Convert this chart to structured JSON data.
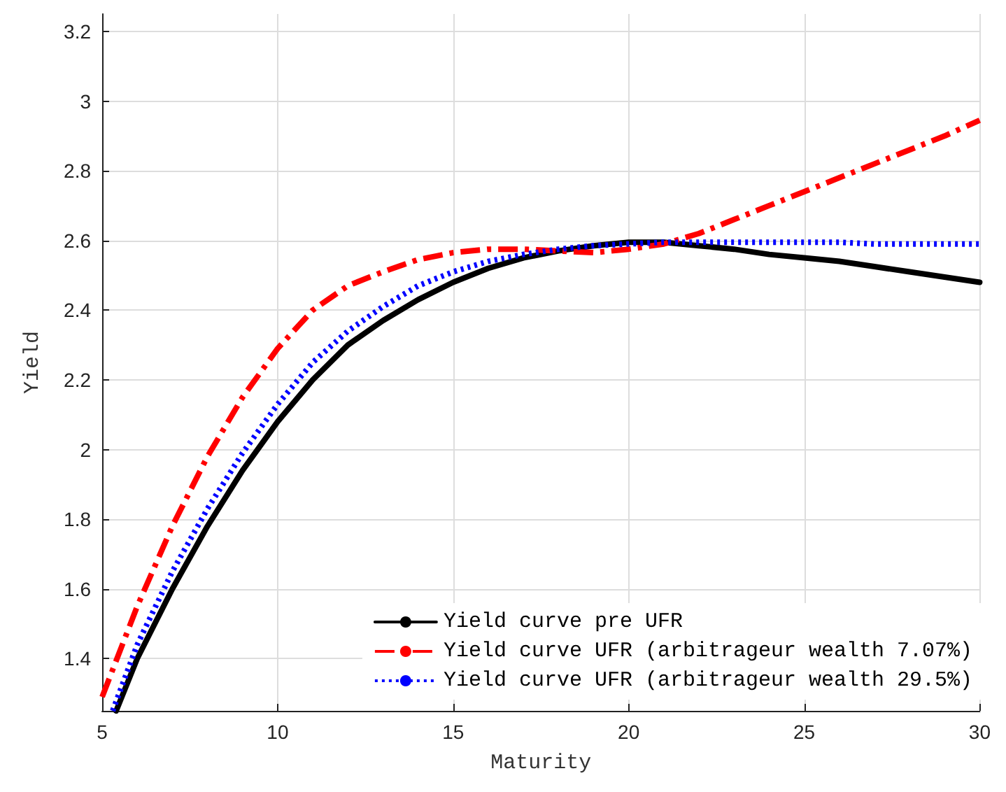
{
  "chart_data": {
    "type": "line",
    "xlabel": "Maturity",
    "ylabel": "Yield",
    "xlim": [
      5,
      30
    ],
    "ylim": [
      1.25,
      3.25
    ],
    "xticks": [
      5,
      10,
      15,
      20,
      25,
      30
    ],
    "yticks": [
      1.4,
      1.6,
      1.8,
      2,
      2.2,
      2.4,
      2.6,
      2.8,
      3,
      3.2
    ],
    "grid": true,
    "legend": "bottom right",
    "marker": "none",
    "series": [
      {
        "name": "Yield curve pre UFR",
        "color": "#000000",
        "line_style": "solid",
        "x": [
          5.4,
          6,
          7,
          8,
          9,
          10,
          11,
          12,
          13,
          14,
          15,
          16,
          17,
          18,
          19,
          20,
          21,
          22,
          23,
          24,
          25,
          26,
          27,
          28,
          29,
          30
        ],
        "values": [
          1.25,
          1.4,
          1.6,
          1.78,
          1.94,
          2.08,
          2.2,
          2.3,
          2.37,
          2.43,
          2.48,
          2.52,
          2.55,
          2.57,
          2.585,
          2.595,
          2.595,
          2.585,
          2.575,
          2.56,
          2.55,
          2.54,
          2.525,
          2.51,
          2.495,
          2.48
        ]
      },
      {
        "name": "Yield curve UFR (arbitrageur wealth 7.07%)",
        "color": "#ff0000",
        "line_style": "dashdot",
        "x": [
          5,
          6,
          7,
          8,
          9,
          10,
          11,
          12,
          13,
          14,
          15,
          16,
          17,
          18,
          19,
          20,
          21,
          22,
          23,
          24,
          25,
          26,
          27,
          28,
          29,
          30
        ],
        "values": [
          1.29,
          1.55,
          1.78,
          1.98,
          2.15,
          2.29,
          2.4,
          2.47,
          2.51,
          2.545,
          2.565,
          2.575,
          2.575,
          2.57,
          2.565,
          2.575,
          2.59,
          2.62,
          2.66,
          2.7,
          2.74,
          2.78,
          2.82,
          2.86,
          2.9,
          2.945
        ]
      },
      {
        "name": "Yield curve UFR (arbitrageur wealth 29.5%)",
        "color": "#0000ff",
        "line_style": "dotted",
        "x": [
          5.3,
          6,
          7,
          8,
          9,
          10,
          11,
          12,
          13,
          14,
          15,
          16,
          17,
          18,
          19,
          20,
          21,
          22,
          23,
          24,
          25,
          26,
          27,
          28,
          29,
          30
        ],
        "values": [
          1.25,
          1.44,
          1.65,
          1.83,
          1.99,
          2.13,
          2.25,
          2.34,
          2.41,
          2.47,
          2.51,
          2.54,
          2.56,
          2.575,
          2.585,
          2.59,
          2.595,
          2.595,
          2.595,
          2.595,
          2.595,
          2.595,
          2.59,
          2.59,
          2.59,
          2.59
        ]
      }
    ]
  }
}
